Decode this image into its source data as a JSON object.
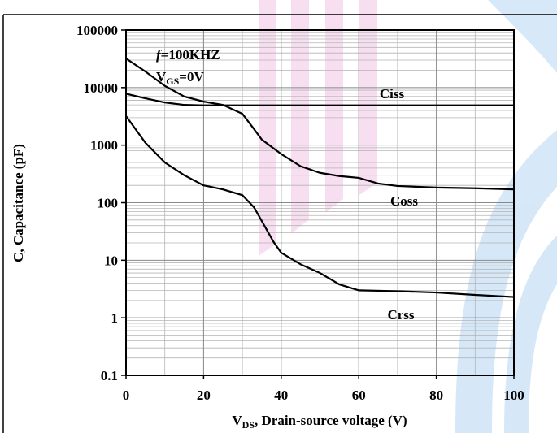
{
  "chart_data": {
    "type": "line",
    "annotations": [
      {
        "italic": "f",
        "text": "=100KHZ"
      },
      {
        "main": "V",
        "sub": "GS",
        "rest": "=0V"
      }
    ],
    "xlabel": {
      "main": "V",
      "sub": "DS",
      "rest": ", Drain-source voltage (V)"
    },
    "ylabel": "C, Capacitance (pF)",
    "log_y": true,
    "grid": true,
    "xlim": [
      0,
      100
    ],
    "xticks": [
      0,
      20,
      40,
      60,
      80,
      100
    ],
    "ylim": [
      0.1,
      100000
    ],
    "yticks": [
      0.1,
      1,
      10,
      100,
      1000,
      10000,
      100000
    ],
    "series": [
      {
        "name": "Ciss",
        "color": "#000000",
        "x": [
          0,
          5,
          10,
          15,
          20,
          30,
          40,
          60,
          80,
          100
        ],
        "values": [
          7800,
          6500,
          5500,
          5000,
          4900,
          4900,
          4900,
          4900,
          4900,
          4900
        ]
      },
      {
        "name": "Coss",
        "color": "#000000",
        "x": [
          0,
          5,
          10,
          15,
          20,
          25,
          30,
          33,
          35,
          40,
          45,
          50,
          55,
          60,
          65,
          70,
          80,
          90,
          100
        ],
        "values": [
          32000,
          19000,
          10700,
          7000,
          5700,
          5000,
          3500,
          1900,
          1250,
          700,
          430,
          330,
          290,
          270,
          215,
          195,
          183,
          178,
          170
        ]
      },
      {
        "name": "Crss",
        "color": "#000000",
        "x": [
          0,
          5,
          10,
          15,
          20,
          25,
          30,
          33,
          35,
          38,
          40,
          45,
          50,
          55,
          60,
          70,
          80,
          90,
          100
        ],
        "values": [
          3200,
          1100,
          500,
          300,
          200,
          170,
          135,
          83,
          48,
          21,
          13.5,
          8.5,
          6,
          3.8,
          3,
          2.9,
          2.75,
          2.5,
          2.3
        ]
      }
    ]
  }
}
